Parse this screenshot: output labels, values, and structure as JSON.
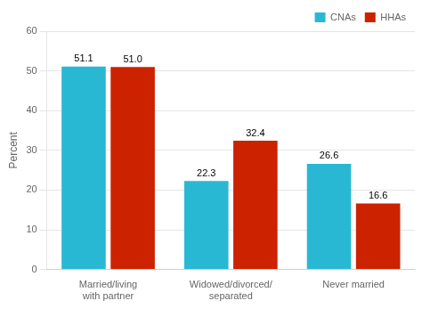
{
  "chart_data": {
    "type": "bar",
    "categories": [
      "Married/living\nwith partner",
      "Widowed/divorced/\nseparated",
      "Never married"
    ],
    "series": [
      {
        "name": "CNAs",
        "color": "#29B8D4",
        "values": [
          51.1,
          22.3,
          26.6
        ],
        "value_labels": [
          "51.1",
          "22.3",
          "26.6"
        ]
      },
      {
        "name": "HHAs",
        "color": "#CC2200",
        "values": [
          51.0,
          32.4,
          16.6
        ],
        "value_labels": [
          "51.0",
          "32.4",
          "16.6"
        ]
      }
    ],
    "ylabel": "Percent",
    "ylim": [
      0,
      60
    ],
    "yticks": [
      0,
      10,
      20,
      30,
      40,
      50,
      60
    ],
    "grid": true,
    "legend": "upper right",
    "data_labels": true
  }
}
